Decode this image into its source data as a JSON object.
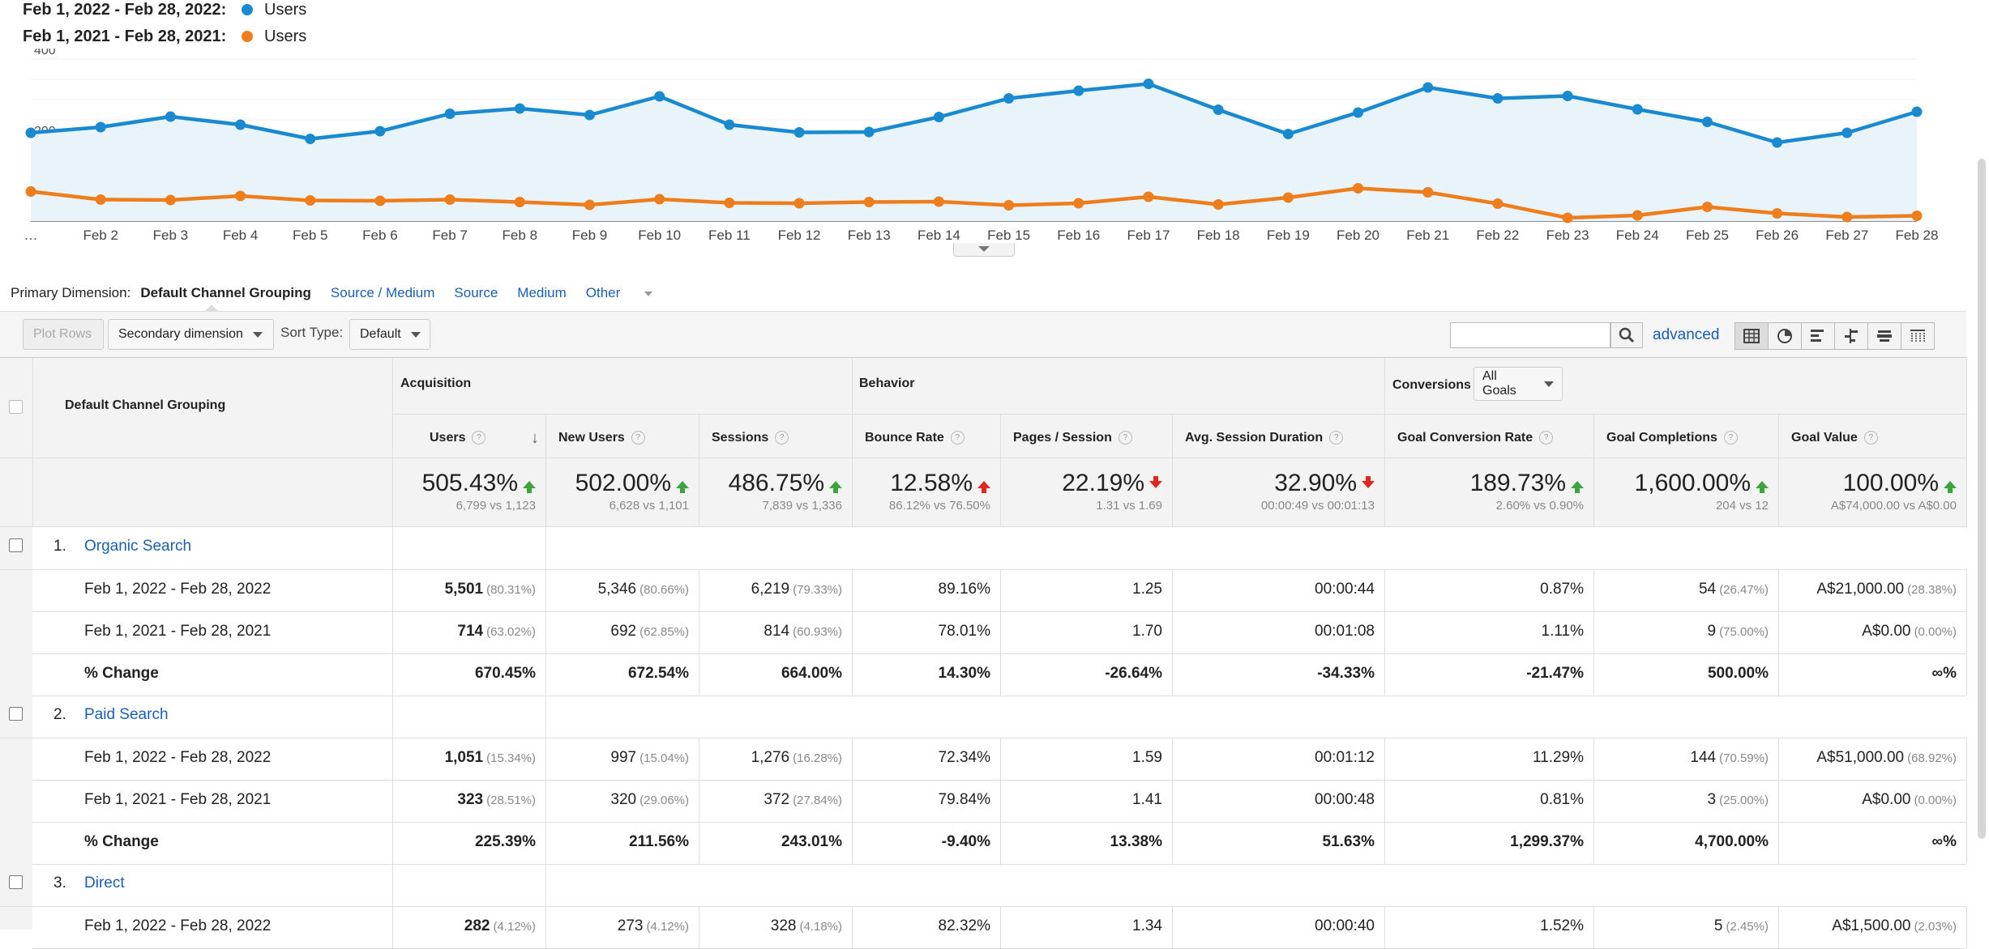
{
  "legend": [
    {
      "range": "Feb 1, 2022 - Feb 28, 2022:",
      "series": "Users",
      "color": "#1a8ad0"
    },
    {
      "range": "Feb 1, 2021 - Feb 28, 2021:",
      "series": "Users",
      "color": "#ee7d1c"
    }
  ],
  "chart_data": {
    "type": "line",
    "x": [
      "…",
      "Feb 2",
      "Feb 3",
      "Feb 4",
      "Feb 5",
      "Feb 6",
      "Feb 7",
      "Feb 8",
      "Feb 9",
      "Feb 10",
      "Feb 11",
      "Feb 12",
      "Feb 13",
      "Feb 14",
      "Feb 15",
      "Feb 16",
      "Feb 17",
      "Feb 18",
      "Feb 19",
      "Feb 20",
      "Feb 21",
      "Feb 22",
      "Feb 23",
      "Feb 24",
      "Feb 25",
      "Feb 26",
      "Feb 27",
      "Feb 28"
    ],
    "yticks": [
      "400",
      "200"
    ],
    "ylim": [
      0,
      400
    ],
    "grid": true,
    "series": [
      {
        "name": "Users",
        "color": "#1a8ad0",
        "area": true,
        "values": [
          218,
          232,
          258,
          238,
          203,
          222,
          265,
          278,
          262,
          308,
          238,
          219,
          220,
          257,
          303,
          322,
          339,
          275,
          215,
          268,
          330,
          303,
          309,
          276,
          245,
          194,
          218,
          270
        ]
      },
      {
        "name": "Users",
        "color": "#ee7d1c",
        "area": false,
        "values": [
          73,
          53,
          52,
          62,
          51,
          50,
          53,
          47,
          40,
          54,
          45,
          44,
          47,
          48,
          39,
          44,
          60,
          41,
          58,
          81,
          71,
          43,
          8,
          14,
          35,
          19,
          10,
          13
        ]
      }
    ]
  },
  "primary_dimension": {
    "label": "Primary Dimension:",
    "active": "Default Channel Grouping",
    "links": [
      "Source / Medium",
      "Source",
      "Medium",
      "Other"
    ]
  },
  "toolbar": {
    "plot_rows": "Plot Rows",
    "secondary_dimension": "Secondary dimension",
    "sort_type_label": "Sort Type:",
    "sort_type_value": "Default",
    "search_placeholder": "",
    "advanced": "advanced"
  },
  "table": {
    "dimension_header": "Default Channel Grouping",
    "groups": {
      "acquisition": "Acquisition",
      "behavior": "Behavior",
      "conversions": "Conversions",
      "goals_select": "All Goals"
    },
    "columns": [
      "Users",
      "New Users",
      "Sessions",
      "Bounce Rate",
      "Pages / Session",
      "Avg. Session Duration",
      "Goal Conversion Rate",
      "Goal Completions",
      "Goal Value"
    ],
    "totals": [
      {
        "pct": "505.43%",
        "sub": "6,799 vs 1,123",
        "dir": "up-good"
      },
      {
        "pct": "502.00%",
        "sub": "6,628 vs 1,101",
        "dir": "up-good"
      },
      {
        "pct": "486.75%",
        "sub": "7,839 vs 1,336",
        "dir": "up-good"
      },
      {
        "pct": "12.58%",
        "sub": "86.12% vs 76.50%",
        "dir": "up-bad"
      },
      {
        "pct": "22.19%",
        "sub": "1.31 vs 1.69",
        "dir": "down-bad"
      },
      {
        "pct": "32.90%",
        "sub": "00:00:49 vs 00:01:13",
        "dir": "down-bad"
      },
      {
        "pct": "189.73%",
        "sub": "2.60% vs 0.90%",
        "dir": "up-good"
      },
      {
        "pct": "1,600.00%",
        "sub": "204 vs 12",
        "dir": "up-good"
      },
      {
        "pct": "100.00%",
        "sub": "A$74,000.00 vs A$0.00",
        "dir": "up-good"
      }
    ],
    "rows": [
      {
        "num": "1.",
        "name": "Organic Search",
        "sub": [
          {
            "label": "Feb 1, 2022 - Feb 28, 2022",
            "cells": [
              [
                "5,501",
                "(80.31%)"
              ],
              [
                "5,346",
                "(80.66%)"
              ],
              [
                "6,219",
                "(79.33%)"
              ],
              [
                "89.16%",
                ""
              ],
              [
                "1.25",
                ""
              ],
              [
                "00:00:44",
                ""
              ],
              [
                "0.87%",
                ""
              ],
              [
                "54",
                "(26.47%)"
              ],
              [
                "A$21,000.00",
                "(28.38%)"
              ]
            ]
          },
          {
            "label": "Feb 1, 2021 - Feb 28, 2021",
            "cells": [
              [
                "714",
                "(63.02%)"
              ],
              [
                "692",
                "(62.85%)"
              ],
              [
                "814",
                "(60.93%)"
              ],
              [
                "78.01%",
                ""
              ],
              [
                "1.70",
                ""
              ],
              [
                "00:01:08",
                ""
              ],
              [
                "1.11%",
                ""
              ],
              [
                "9",
                "(75.00%)"
              ],
              [
                "A$0.00",
                "(0.00%)"
              ]
            ]
          },
          {
            "label": "% Change",
            "cells": [
              [
                "670.45%",
                ""
              ],
              [
                "672.54%",
                ""
              ],
              [
                "664.00%",
                ""
              ],
              [
                "14.30%",
                ""
              ],
              [
                "-26.64%",
                ""
              ],
              [
                "-34.33%",
                ""
              ],
              [
                "-21.47%",
                ""
              ],
              [
                "500.00%",
                ""
              ],
              [
                "∞%",
                ""
              ]
            ]
          }
        ]
      },
      {
        "num": "2.",
        "name": "Paid Search",
        "sub": [
          {
            "label": "Feb 1, 2022 - Feb 28, 2022",
            "cells": [
              [
                "1,051",
                "(15.34%)"
              ],
              [
                "997",
                "(15.04%)"
              ],
              [
                "1,276",
                "(16.28%)"
              ],
              [
                "72.34%",
                ""
              ],
              [
                "1.59",
                ""
              ],
              [
                "00:01:12",
                ""
              ],
              [
                "11.29%",
                ""
              ],
              [
                "144",
                "(70.59%)"
              ],
              [
                "A$51,000.00",
                "(68.92%)"
              ]
            ]
          },
          {
            "label": "Feb 1, 2021 - Feb 28, 2021",
            "cells": [
              [
                "323",
                "(28.51%)"
              ],
              [
                "320",
                "(29.06%)"
              ],
              [
                "372",
                "(27.84%)"
              ],
              [
                "79.84%",
                ""
              ],
              [
                "1.41",
                ""
              ],
              [
                "00:00:48",
                ""
              ],
              [
                "0.81%",
                ""
              ],
              [
                "3",
                "(25.00%)"
              ],
              [
                "A$0.00",
                "(0.00%)"
              ]
            ]
          },
          {
            "label": "% Change",
            "cells": [
              [
                "225.39%",
                ""
              ],
              [
                "211.56%",
                ""
              ],
              [
                "243.01%",
                ""
              ],
              [
                "-9.40%",
                ""
              ],
              [
                "13.38%",
                ""
              ],
              [
                "51.63%",
                ""
              ],
              [
                "1,299.37%",
                ""
              ],
              [
                "4,700.00%",
                ""
              ],
              [
                "∞%",
                ""
              ]
            ]
          }
        ]
      },
      {
        "num": "3.",
        "name": "Direct",
        "sub": [
          {
            "label": "Feb 1, 2022 - Feb 28, 2022",
            "cells": [
              [
                "282",
                "(4.12%)"
              ],
              [
                "273",
                "(4.12%)"
              ],
              [
                "328",
                "(4.18%)"
              ],
              [
                "82.32%",
                ""
              ],
              [
                "1.34",
                ""
              ],
              [
                "00:00:40",
                ""
              ],
              [
                "1.52%",
                ""
              ],
              [
                "5",
                "(2.45%)"
              ],
              [
                "A$1,500.00",
                "(2.03%)"
              ]
            ]
          }
        ]
      }
    ]
  }
}
